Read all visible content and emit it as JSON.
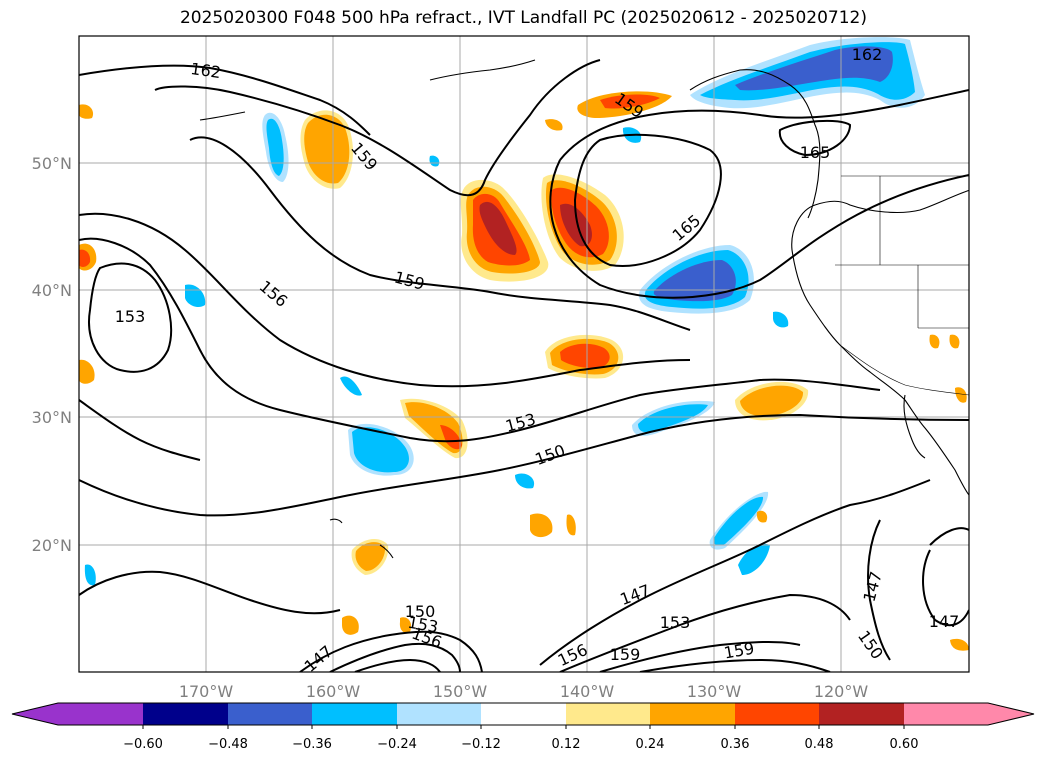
{
  "title": "2025020300 F048 500 hPa refract., IVT Landfall PC (2025020612 - 2025020712)",
  "map": {
    "lon_labels": [
      "170°W",
      "160°W",
      "150°W",
      "140°W",
      "130°W",
      "120°W"
    ],
    "lat_labels": [
      "50°N",
      "40°N",
      "30°N",
      "20°N"
    ],
    "contour_labels": [
      "162",
      "159",
      "162",
      "159",
      "165",
      "165",
      "156",
      "159",
      "153",
      "153",
      "150",
      "147",
      "153",
      "147",
      "150",
      "150",
      "153",
      "156",
      "156",
      "159",
      "159",
      "147",
      "147"
    ]
  },
  "colorbar": {
    "tick_labels": [
      "−0.60",
      "−0.48",
      "−0.36",
      "−0.24",
      "−0.12",
      "0.12",
      "0.24",
      "0.36",
      "0.48",
      "0.60"
    ],
    "colors": [
      "#9933cc",
      "#00008b",
      "#3a5fcd",
      "#00bfff",
      "#b0e2ff",
      "#ffffff",
      "#ffe98c",
      "#ffa500",
      "#ff4500",
      "#b22222",
      "#ff88aa"
    ]
  }
}
